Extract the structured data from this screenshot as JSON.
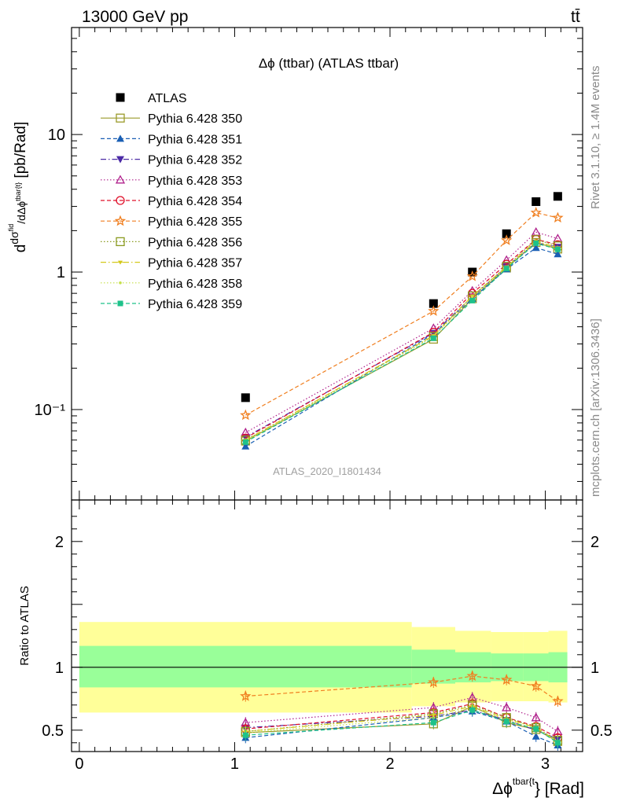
{
  "header": {
    "left": "13000 GeV pp",
    "right": "tt̄",
    "plot_title": "Δϕ (ttbar) (ATLAS ttbar)",
    "watermark": "ATLAS_2020_I1801434",
    "side_top": "Rivet 3.1.10, ≥ 1.4M events",
    "side_bottom": "mcplots.cern.ch [arXiv:1306.3436]"
  },
  "chart_data": {
    "type": "scatter",
    "x_label": "Δϕ^{tbar{t}} [Rad]",
    "x_ticks": [
      "0",
      "1",
      "2",
      "3"
    ],
    "xlim": [
      -0.05,
      3.24
    ],
    "x_bins": [
      [
        0,
        2.14
      ],
      [
        2.14,
        2.42
      ],
      [
        2.42,
        2.65
      ],
      [
        2.65,
        2.86
      ],
      [
        2.86,
        3.02
      ],
      [
        3.02,
        3.1416
      ]
    ],
    "x": [
      1.07,
      2.28,
      2.53,
      2.75,
      2.94,
      3.08
    ],
    "main": {
      "ylabel": "dσ^{fid}/dΔϕ^{tbar{t}} [pb/Rad]",
      "yscale": "log",
      "ylim": [
        0.022,
        60
      ],
      "y_tick_labels": [
        "10⁻¹",
        "1",
        "10"
      ],
      "atlas": [
        0.122,
        0.59,
        1.0,
        1.9,
        3.25,
        3.55
      ]
    },
    "ratio": {
      "ylabel": "Ratio to ATLAS",
      "ylim": [
        0.33,
        2.33
      ],
      "y_tick_labels": [
        "0.5",
        "1",
        "2"
      ],
      "band_inner": [
        [
          0.84,
          1.17
        ],
        [
          0.87,
          1.14
        ],
        [
          0.88,
          1.12
        ],
        [
          0.89,
          1.11
        ],
        [
          0.89,
          1.11
        ],
        [
          0.88,
          1.12
        ]
      ],
      "band_outer": [
        [
          0.64,
          1.36
        ],
        [
          0.69,
          1.32
        ],
        [
          0.72,
          1.29
        ],
        [
          0.73,
          1.28
        ],
        [
          0.73,
          1.28
        ],
        [
          0.72,
          1.29
        ]
      ]
    },
    "series": [
      {
        "name": "ATLAS",
        "color": "#000000",
        "marker": "square-filled",
        "line": "none",
        "values": [
          0.122,
          0.59,
          1.0,
          1.9,
          3.25,
          3.55
        ]
      },
      {
        "name": "Pythia 6.428 350",
        "color": "#9a9a2a",
        "marker": "square-open",
        "line": "solid",
        "values": [
          0.059,
          0.325,
          0.64,
          1.07,
          1.64,
          1.47
        ],
        "ratio": [
          0.48,
          0.55,
          0.69,
          0.56,
          0.505,
          0.41
        ]
      },
      {
        "name": "Pythia 6.428 351",
        "color": "#1a5fb4",
        "marker": "triangle-up-filled",
        "line": "dashed",
        "values": [
          0.054,
          0.355,
          0.64,
          1.05,
          1.5,
          1.35
        ],
        "ratio": [
          0.44,
          0.6,
          0.65,
          0.57,
          0.45,
          0.38
        ]
      },
      {
        "name": "Pythia 6.428 352",
        "color": "#4b2aa6",
        "marker": "triangle-down-filled",
        "line": "dashdot",
        "values": [
          0.063,
          0.36,
          0.66,
          1.09,
          1.63,
          1.52
        ],
        "ratio": [
          0.52,
          0.61,
          0.66,
          0.58,
          0.5,
          0.43
        ]
      },
      {
        "name": "Pythia 6.428 353",
        "color": "#b0228c",
        "marker": "triangle-up-open",
        "line": "dotted",
        "values": [
          0.068,
          0.39,
          0.73,
          1.22,
          1.95,
          1.75
        ],
        "ratio": [
          0.56,
          0.68,
          0.76,
          0.68,
          0.6,
          0.49
        ]
      },
      {
        "name": "Pythia 6.428 354",
        "color": "#e0102a",
        "marker": "circle-open",
        "line": "dashed",
        "values": [
          0.062,
          0.365,
          0.7,
          1.14,
          1.73,
          1.58
        ],
        "ratio": [
          0.51,
          0.64,
          0.71,
          0.6,
          0.53,
          0.44
        ]
      },
      {
        "name": "Pythia 6.428 355",
        "color": "#f07f20",
        "marker": "star-open",
        "line": "dashed",
        "values": [
          0.091,
          0.52,
          0.93,
          1.7,
          2.7,
          2.48
        ],
        "ratio": [
          0.77,
          0.88,
          0.93,
          0.9,
          0.85,
          0.73
        ]
      },
      {
        "name": "Pythia 6.428 356",
        "color": "#8a9a20",
        "marker": "square-open",
        "line": "dotted",
        "values": [
          0.06,
          0.34,
          0.67,
          1.1,
          1.72,
          1.55
        ],
        "ratio": [
          0.49,
          0.63,
          0.7,
          0.6,
          0.52,
          0.42
        ]
      },
      {
        "name": "Pythia 6.428 357",
        "color": "#d4c81a",
        "marker": "tri-down",
        "line": "dashdot",
        "values": [
          0.06,
          0.345,
          0.67,
          1.09,
          1.68,
          1.5
        ],
        "ratio": [
          0.49,
          0.62,
          0.69,
          0.59,
          0.52,
          0.41
        ]
      },
      {
        "name": "Pythia 6.428 358",
        "color": "#c6e04a",
        "marker": "dot",
        "line": "dotted",
        "values": [
          0.059,
          0.34,
          0.66,
          1.08,
          1.65,
          1.5
        ],
        "ratio": [
          0.48,
          0.6,
          0.68,
          0.58,
          0.51,
          0.41
        ]
      },
      {
        "name": "Pythia 6.428 359",
        "color": "#1ec28a",
        "marker": "square-filled-small",
        "line": "dashed",
        "values": [
          0.058,
          0.33,
          0.62,
          1.06,
          1.62,
          1.46
        ],
        "ratio": [
          0.46,
          0.56,
          0.66,
          0.57,
          0.51,
          0.4
        ]
      }
    ]
  }
}
